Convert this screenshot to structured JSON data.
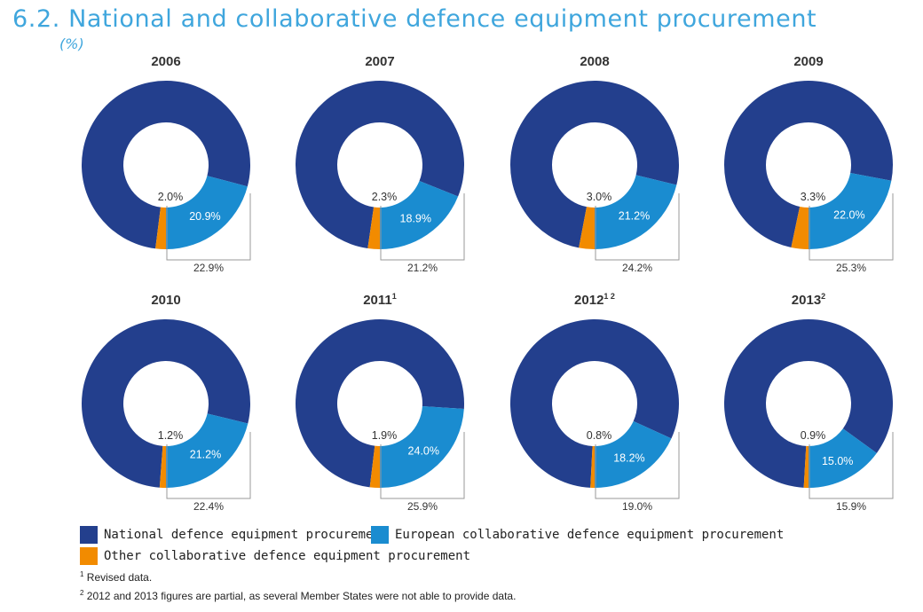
{
  "title": "6.2. National and collaborative defence equipment procurement",
  "unit": "(%)",
  "colors": {
    "national": "#233f8d",
    "european": "#1a8cd0",
    "other": "#f28b00",
    "bracket": "#999999"
  },
  "legend": [
    {
      "key": "national",
      "label": "National defence equipment procurement"
    },
    {
      "key": "european",
      "label": "European collaborative defence equipment procurement"
    },
    {
      "key": "other",
      "label": "Other collaborative defence equipment procurement"
    }
  ],
  "notes": [
    {
      "mark": "1",
      "text": " Revised data."
    },
    {
      "mark": "2",
      "text": " 2012 and 2013 figures are partial, as several Member States were not able to provide data."
    }
  ],
  "chart_data": [
    {
      "type": "pie",
      "year": "2006",
      "sup": "",
      "slices": [
        {
          "name": "National defence equipment procurement",
          "value": 77.1,
          "label": "77.1%"
        },
        {
          "name": "European collaborative defence equipment procurement",
          "value": 20.9,
          "label": "20.9%"
        },
        {
          "name": "Other collaborative defence equipment procurement",
          "value": 2.0,
          "label": "2.0%"
        }
      ],
      "collaborative_total": "22.9%"
    },
    {
      "type": "pie",
      "year": "2007",
      "sup": "",
      "slices": [
        {
          "name": "National defence equipment procurement",
          "value": 78.8,
          "label": "78.8%"
        },
        {
          "name": "European collaborative defence equipment procurement",
          "value": 18.9,
          "label": "18.9%"
        },
        {
          "name": "Other collaborative defence equipment procurement",
          "value": 2.3,
          "label": "2.3%"
        }
      ],
      "collaborative_total": "21.2%"
    },
    {
      "type": "pie",
      "year": "2008",
      "sup": "",
      "slices": [
        {
          "name": "National defence equipment procurement",
          "value": 75.8,
          "label": "75.8%"
        },
        {
          "name": "European collaborative defence equipment procurement",
          "value": 21.2,
          "label": "21.2%"
        },
        {
          "name": "Other collaborative defence equipment procurement",
          "value": 3.0,
          "label": "3.0%"
        }
      ],
      "collaborative_total": "24.2%"
    },
    {
      "type": "pie",
      "year": "2009",
      "sup": "",
      "slices": [
        {
          "name": "National defence equipment procurement",
          "value": 74.7,
          "label": "74.7%"
        },
        {
          "name": "European collaborative defence equipment procurement",
          "value": 22.0,
          "label": "22.0%"
        },
        {
          "name": "Other collaborative defence equipment procurement",
          "value": 3.3,
          "label": "3.3%"
        }
      ],
      "collaborative_total": "25.3%"
    },
    {
      "type": "pie",
      "year": "2010",
      "sup": "",
      "slices": [
        {
          "name": "National defence equipment procurement",
          "value": 77.6,
          "label": "77.6%"
        },
        {
          "name": "European collaborative defence equipment procurement",
          "value": 21.2,
          "label": "21.2%"
        },
        {
          "name": "Other collaborative defence equipment procurement",
          "value": 1.2,
          "label": "1.2%"
        }
      ],
      "collaborative_total": "22.4%"
    },
    {
      "type": "pie",
      "year": "2011",
      "sup": "1",
      "slices": [
        {
          "name": "National defence equipment procurement",
          "value": 74.1,
          "label": "74.1%"
        },
        {
          "name": "European collaborative defence equipment procurement",
          "value": 24.0,
          "label": "24.0%"
        },
        {
          "name": "Other collaborative defence equipment procurement",
          "value": 1.9,
          "label": "1.9%"
        }
      ],
      "collaborative_total": "25.9%"
    },
    {
      "type": "pie",
      "year": "2012",
      "sup": "1 2",
      "slices": [
        {
          "name": "National defence equipment procurement",
          "value": 81.0,
          "label": "81.0%"
        },
        {
          "name": "European collaborative defence equipment procurement",
          "value": 18.2,
          "label": "18.2%"
        },
        {
          "name": "Other collaborative defence equipment procurement",
          "value": 0.8,
          "label": "0.8%"
        }
      ],
      "collaborative_total": "19.0%"
    },
    {
      "type": "pie",
      "year": "2013",
      "sup": "2",
      "slices": [
        {
          "name": "National defence equipment procurement",
          "value": 84.1,
          "label": "84.1%"
        },
        {
          "name": "European collaborative defence equipment procurement",
          "value": 15.0,
          "label": "15.0%"
        },
        {
          "name": "Other collaborative defence equipment procurement",
          "value": 0.9,
          "label": "0.9%"
        }
      ],
      "collaborative_total": "15.9%"
    }
  ]
}
